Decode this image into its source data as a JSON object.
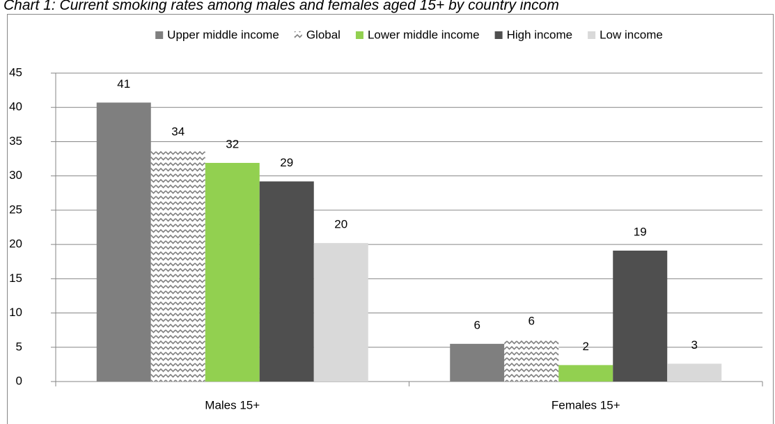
{
  "chart_data": {
    "type": "bar",
    "title": "Chart 1: Current smoking rates among males and females aged 15+ by country incom",
    "categories": [
      "Males 15+",
      "Females 15+"
    ],
    "series": [
      {
        "name": "Upper middle income",
        "color": "#7f7f7f",
        "values": [
          40.7,
          5.5
        ],
        "value_labels": [
          "41",
          "6"
        ]
      },
      {
        "name": "Global",
        "color": "#808080",
        "pattern": "zigzag",
        "values": [
          33.7,
          6.1
        ],
        "value_labels": [
          "34",
          "6"
        ]
      },
      {
        "name": "Lower middle income",
        "color": "#92d050",
        "values": [
          31.9,
          2.4
        ],
        "value_labels": [
          "32",
          "2"
        ]
      },
      {
        "name": "High income",
        "color": "#4f4f4f",
        "values": [
          29.2,
          19.1
        ],
        "value_labels": [
          "29",
          "19"
        ]
      },
      {
        "name": "Low income",
        "color": "#d9d9d9",
        "values": [
          20.2,
          2.6
        ],
        "value_labels": [
          "20",
          "3"
        ]
      }
    ],
    "ylim": [
      0,
      45
    ],
    "yticks": [
      0,
      5,
      10,
      15,
      20,
      25,
      30,
      35,
      40,
      45
    ],
    "grid": true,
    "legend": "top"
  }
}
